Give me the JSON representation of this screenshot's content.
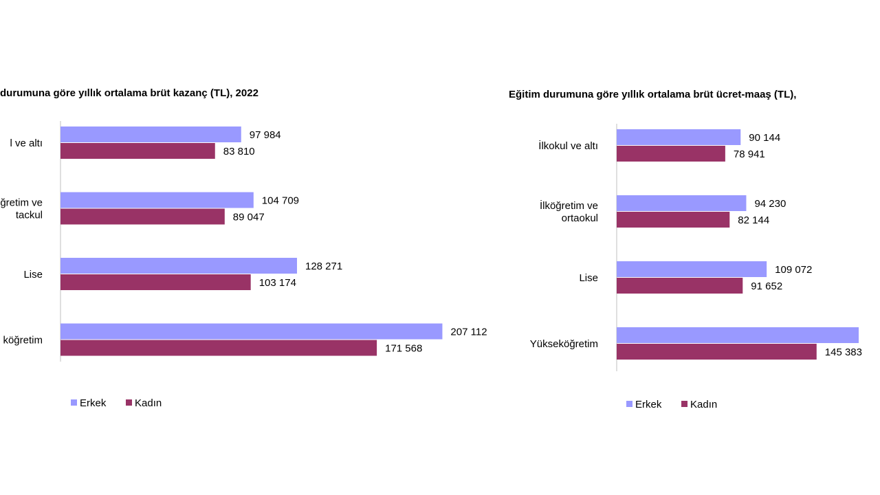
{
  "colors": {
    "erkek": "#9999ff",
    "kadin": "#993366",
    "axis": "#bfbfbf"
  },
  "chart_data": [
    {
      "type": "bar",
      "orientation": "horizontal",
      "title": "durumuna göre yıllık ortalama brüt kazanç (TL), 2022",
      "categories": [
        [
          "l ve altı"
        ],
        [
          "ğretim ve",
          "tackul"
        ],
        [
          "Lise"
        ],
        [
          "köğretim"
        ]
      ],
      "series": [
        {
          "name": "Erkek",
          "values": [
            97984,
            104709,
            128271,
            207112
          ],
          "labels": [
            "97 984",
            "104 709",
            "128 271",
            "207 112"
          ]
        },
        {
          "name": "Kadın",
          "values": [
            83810,
            89047,
            103174,
            171568
          ],
          "labels": [
            "83 810",
            "89 047",
            "103 174",
            "171 568"
          ]
        }
      ],
      "xlim": [
        0,
        220000
      ],
      "grid": false,
      "legend": "bottom-left",
      "legend_labels": [
        "Erkek",
        "Kadın"
      ]
    },
    {
      "type": "bar",
      "orientation": "horizontal",
      "title": "Eğitim durumuna göre yıllık ortalama brüt ücret-maaş (TL),",
      "categories": [
        [
          "İlkokul ve altı"
        ],
        [
          "İlköğretim ve",
          "ortaokul"
        ],
        [
          "Lise"
        ],
        [
          "Yükseköğretim"
        ]
      ],
      "series": [
        {
          "name": "Erkek",
          "values": [
            90144,
            94230,
            109072,
            176000
          ],
          "labels": [
            "90 144",
            "94 230",
            "109 072",
            ""
          ]
        },
        {
          "name": "Kadın",
          "values": [
            78941,
            82144,
            91652,
            145383
          ],
          "labels": [
            "78 941",
            "82 144",
            "91 652",
            "145 383"
          ]
        }
      ],
      "xlim": [
        0,
        195000
      ],
      "grid": false,
      "legend": "bottom-left",
      "legend_labels": [
        "Erkek",
        "Kadın"
      ]
    }
  ]
}
